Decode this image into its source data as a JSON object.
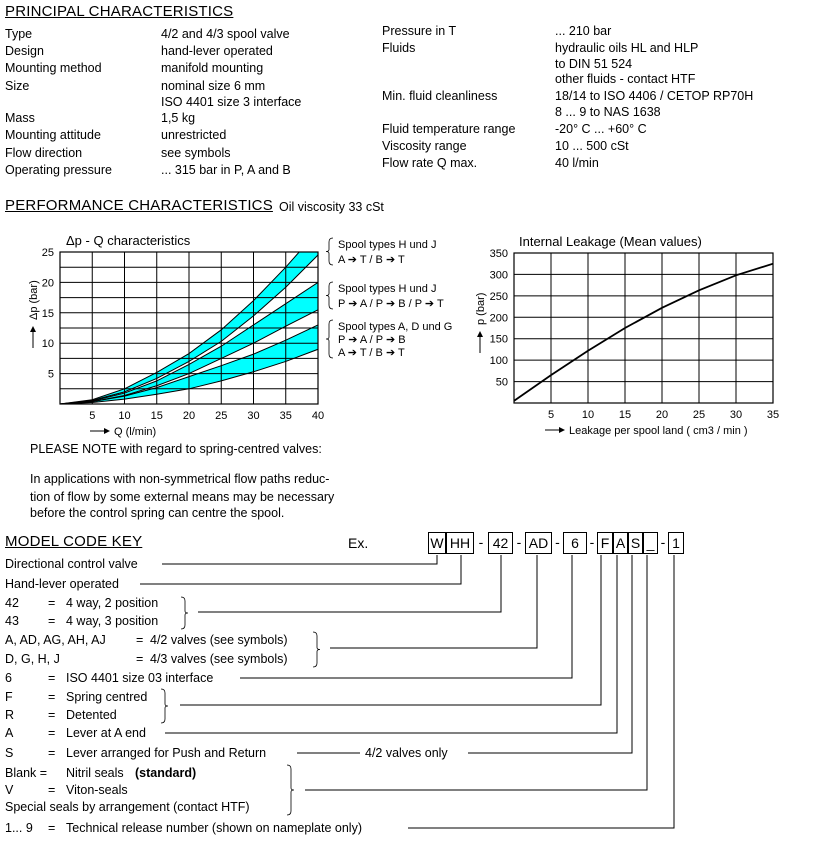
{
  "principal": {
    "heading": "PRINCIPAL CHARACTERISTICS",
    "left": [
      {
        "label": "Type",
        "value": [
          "4/2 and 4/3 spool valve"
        ]
      },
      {
        "label": "Design",
        "value": [
          "hand-lever operated"
        ]
      },
      {
        "label": "Mounting method",
        "value": [
          "manifold mounting"
        ]
      },
      {
        "label": "Size",
        "value": [
          "nominal size 6 mm",
          "ISO 4401 size 3 interface"
        ]
      },
      {
        "label": "Mass",
        "value": [
          "1,5 kg"
        ]
      },
      {
        "label": "Mounting attitude",
        "value": [
          "unrestricted"
        ]
      },
      {
        "label": "Flow direction",
        "value": [
          "see symbols"
        ]
      },
      {
        "label": "Operating pressure",
        "value": [
          "... 315 bar  in P, A and B"
        ]
      }
    ],
    "right": [
      {
        "label": "Pressure in T",
        "value": [
          "... 210 bar"
        ]
      },
      {
        "label": "Fluids",
        "value": [
          "hydraulic oils HL and HLP",
          "to DIN 51 524",
          "other fluids - contact HTF"
        ]
      },
      {
        "label": "Min. fluid cleanliness",
        "value": [
          "18/14 to ISO 4406 / CETOP RP70H",
          "8 ... 9 to NAS 1638"
        ]
      },
      {
        "label": "Fluid temperature range",
        "value": [
          "-20° C ... +60° C"
        ]
      },
      {
        "label": "Viscosity range",
        "value": [
          "10 ... 500 cSt"
        ]
      },
      {
        "label": "Flow rate Q max.",
        "value": [
          "40 l/min"
        ]
      }
    ]
  },
  "performance": {
    "heading": "PERFORMANCE CHARACTERISTICS",
    "subheading": "Oil viscosity 33 cSt",
    "note_title": "PLEASE NOTE  with regard to spring-centred valves:",
    "note_lines": [
      "In applications with non-symmetrical flow paths reduc-",
      "tion of flow by some external means may be necessary",
      "before the control spring can centre the spool."
    ]
  },
  "chart_data": [
    {
      "type": "area",
      "title": "Δp - Q characteristics",
      "xlabel": "Q (l/min)",
      "ylabel": "Δp (bar)",
      "xlim": [
        0,
        40
      ],
      "ylim": [
        0,
        25
      ],
      "xticks": [
        5,
        10,
        15,
        20,
        25,
        30,
        35,
        40
      ],
      "yticks": [
        5,
        10,
        15,
        20,
        25
      ],
      "grid": true,
      "fill_color": "#00ffff",
      "x": [
        0,
        5,
        10,
        15,
        20,
        25,
        30,
        35,
        40
      ],
      "bands": [
        {
          "name": [
            "Spool types H und J",
            "A ➔ T / B ➔ T"
          ],
          "upper": [
            0,
            0.7,
            2.5,
            5.2,
            8.3,
            12.2,
            17,
            22.5,
            28.5
          ],
          "lower": [
            0,
            0.6,
            2,
            4.2,
            7,
            10.3,
            14.5,
            19.2,
            24.5
          ]
        },
        {
          "name": [
            "Spool types H und J",
            "P ➔ A / P ➔ B / P ➔ T"
          ],
          "upper": [
            0,
            0.5,
            1.8,
            3.8,
            6.5,
            9.5,
            13,
            16.5,
            20
          ],
          "lower": [
            0,
            0.4,
            1.4,
            3,
            5,
            7.5,
            10,
            12.8,
            15.5
          ]
        },
        {
          "name": [
            "Spool types A, D und G",
            "P ➔ A / P ➔ B",
            "A ➔ T / B ➔ T"
          ],
          "upper": [
            0,
            0.4,
            1.3,
            2.7,
            4.5,
            6.3,
            8.2,
            10.5,
            13
          ],
          "lower": [
            0,
            0.25,
            0.8,
            1.6,
            2.5,
            3.8,
            5.3,
            7,
            9
          ]
        }
      ]
    },
    {
      "type": "line",
      "title": "Internal Leakage   (Mean values)",
      "xlabel": "Leakage per spool land   ( cm3 / min )",
      "ylabel": "p (bar)",
      "xlim": [
        0,
        35
      ],
      "ylim": [
        0,
        350
      ],
      "xticks": [
        5,
        10,
        15,
        20,
        25,
        30,
        35
      ],
      "yticks": [
        50,
        100,
        150,
        200,
        250,
        300,
        350
      ],
      "grid": true,
      "x": [
        0,
        5,
        10,
        15,
        20,
        25,
        30,
        35
      ],
      "y": [
        5,
        65,
        122,
        175,
        222,
        263,
        298,
        325
      ]
    }
  ],
  "model_code": {
    "heading": "MODEL CODE KEY",
    "example_label": "Ex.",
    "code": [
      "W",
      "HH",
      "-",
      "42",
      "-",
      "AD",
      "-",
      "6",
      "-",
      "F",
      "A",
      "S",
      "_",
      "-",
      "1"
    ],
    "rows": [
      {
        "key": "Directional control valve",
        "eq": "",
        "desc": ""
      },
      {
        "key": "Hand-lever operated",
        "eq": "",
        "desc": ""
      },
      {
        "key": "42",
        "eq": "=",
        "desc": "4 way, 2 position"
      },
      {
        "key": "43",
        "eq": "=",
        "desc": "4 way, 3 position"
      },
      {
        "key": "A, AD, AG, AH, AJ",
        "eq": "=",
        "desc": "4/2 valves (see symbols)"
      },
      {
        "key": "D,  G,  H,  J",
        "eq": "=",
        "desc": "4/3 valves (see symbols)"
      },
      {
        "key": "6",
        "eq": "=",
        "desc": "ISO 4401 size 03 interface"
      },
      {
        "key": "F",
        "eq": "=",
        "desc": "Spring centred"
      },
      {
        "key": "R",
        "eq": "=",
        "desc": "Detented"
      },
      {
        "key": "A",
        "eq": "=",
        "desc": "Lever at A end"
      },
      {
        "key": "S",
        "eq": "=",
        "desc": "Lever arranged for Push and Return"
      },
      {
        "key": "Blank =",
        "eq": "",
        "desc": "Nitril seals",
        "bold": "(standard)"
      },
      {
        "key": "V",
        "eq": "=",
        "desc": "Viton-seals"
      },
      {
        "key": "Special seals by arrangement (contact HTF)",
        "eq": "",
        "desc": ""
      },
      {
        "key": "1... 9",
        "eq": "=",
        "desc": "Technical release number (shown on nameplate only)"
      }
    ],
    "s_note": "4/2 valves only"
  }
}
